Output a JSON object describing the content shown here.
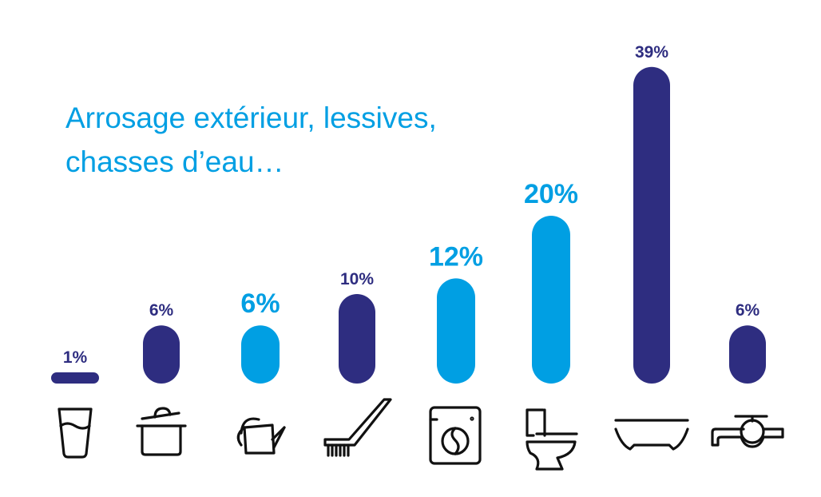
{
  "chart_data": {
    "type": "bar",
    "title": "Arrosage extérieur, lessives,\nchasses d’eau…",
    "categories": [
      "boisson",
      "cuisine",
      "arrosage",
      "ménage",
      "lessive",
      "chasse d’eau",
      "bain / douche",
      "vaisselle / robinet"
    ],
    "icons": [
      "glass-icon",
      "cooking-pot-icon",
      "watering-can-icon",
      "cleaning-brush-icon",
      "washing-machine-icon",
      "toilet-icon",
      "bathtub-icon",
      "faucet-icon"
    ],
    "values": [
      1,
      6,
      6,
      10,
      12,
      20,
      39,
      6
    ],
    "labels": [
      "1%",
      "6%",
      "6%",
      "10%",
      "12%",
      "20%",
      "39%",
      "6%"
    ],
    "highlighted": [
      false,
      false,
      true,
      false,
      true,
      true,
      false,
      false
    ],
    "unit": "%",
    "colors": {
      "default": "#2e2d80",
      "highlight": "#009fe3",
      "title": "#009fe3"
    },
    "ylim": [
      0,
      39
    ],
    "grid": false,
    "legend": "none"
  }
}
